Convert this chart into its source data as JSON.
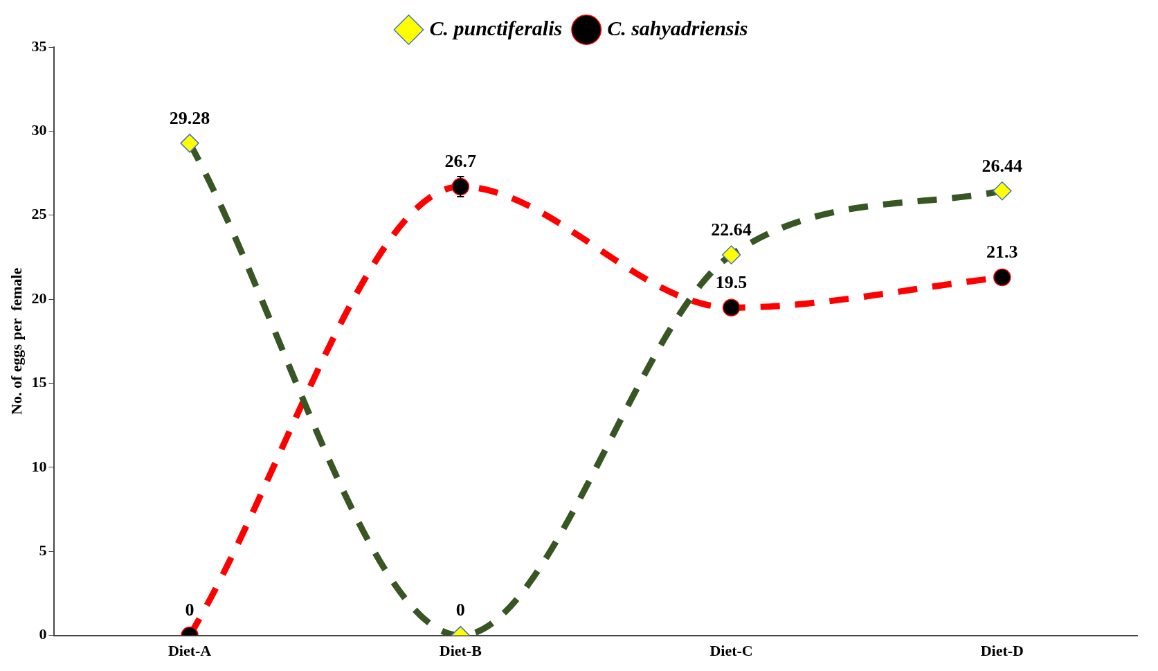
{
  "chart_data": {
    "type": "line",
    "ylabel": "No. of eggs per  female",
    "categories": [
      "Diet-A",
      "Diet-B",
      "Diet-C",
      "Diet-D"
    ],
    "series": [
      {
        "name": "C. punctiferalis",
        "color": "#375623",
        "marker": "diamond",
        "values": [
          29.28,
          0,
          22.64,
          26.44
        ]
      },
      {
        "name": "C. sahyadriensis",
        "color": "#ff0000",
        "marker": "circle",
        "values": [
          0,
          26.7,
          19.5,
          21.3
        ],
        "errors": [
          null,
          0.6,
          null,
          null
        ]
      }
    ],
    "ylim": [
      0,
      35
    ],
    "yticks": [
      0,
      5,
      10,
      15,
      20,
      25,
      30,
      35
    ],
    "grid": false,
    "legend": "top",
    "line_style": "dashed",
    "data_labels": true
  }
}
